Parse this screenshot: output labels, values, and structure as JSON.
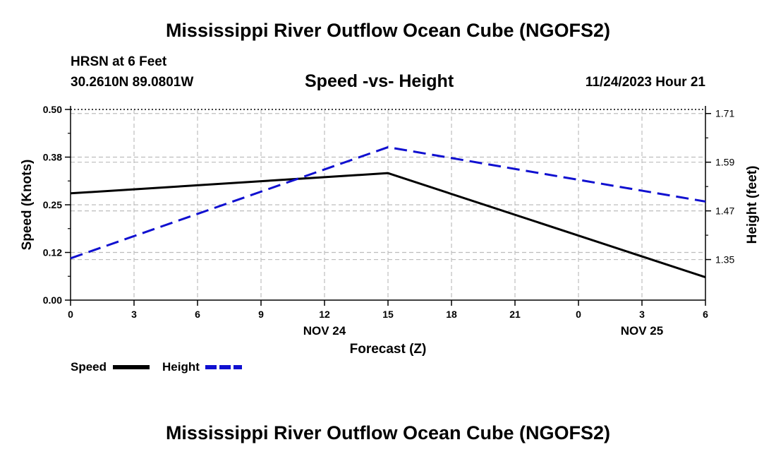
{
  "page": {
    "title_top": "Mississippi River Outflow Ocean Cube (NGOFS2)",
    "title_bottom": "Mississippi River Outflow Ocean Cube (NGOFS2)",
    "station": "HRSN at 6 Feet",
    "location": "30.2610N  89.0801W",
    "subtitle": "Speed -vs- Height",
    "datetime": "11/24/2023 Hour 21"
  },
  "colors": {
    "speed": "#000000",
    "height": "#1010d0",
    "grid": "#bdbdbd"
  },
  "chart_data": {
    "type": "line",
    "title": "Speed -vs- Height",
    "xlabel": "Forecast (Z)",
    "ylabel": "Speed (Knots)",
    "y2label": "Height (feet)",
    "x_ticks": [
      "0",
      "3",
      "6",
      "9",
      "12",
      "15",
      "18",
      "21",
      "0",
      "3",
      "6"
    ],
    "date_labels": [
      {
        "label": "NOV 24",
        "at_hour": 12
      },
      {
        "label": "NOV 25",
        "at_hour": 27
      }
    ],
    "x_range": [
      0,
      30
    ],
    "ylim": [
      0,
      0.5
    ],
    "y_ticks": [
      0.0,
      0.125,
      0.25,
      0.375,
      0.5
    ],
    "y_tick_labels": [
      "0.00",
      "0.12",
      "0.25",
      "0.38",
      "0.50"
    ],
    "y2lim": [
      1.25,
      1.72
    ],
    "y2_ticks": [
      1.35,
      1.47,
      1.59,
      1.71
    ],
    "y2_tick_labels": [
      "1.35",
      "1.47",
      "1.59",
      "1.71"
    ],
    "grid": true,
    "series": [
      {
        "name": "Speed",
        "axis": "left",
        "style": "solid",
        "x": [
          0,
          15,
          30
        ],
        "values": [
          0.28,
          0.333,
          0.06
        ]
      },
      {
        "name": "Height",
        "axis": "right",
        "style": "dashed",
        "x": [
          0,
          15,
          30
        ],
        "values": [
          1.353,
          1.627,
          1.493
        ]
      }
    ],
    "legend": [
      {
        "label": "Speed",
        "style": "solid"
      },
      {
        "label": "Height",
        "style": "dashed"
      }
    ],
    "legend_position": "bottom-left"
  }
}
